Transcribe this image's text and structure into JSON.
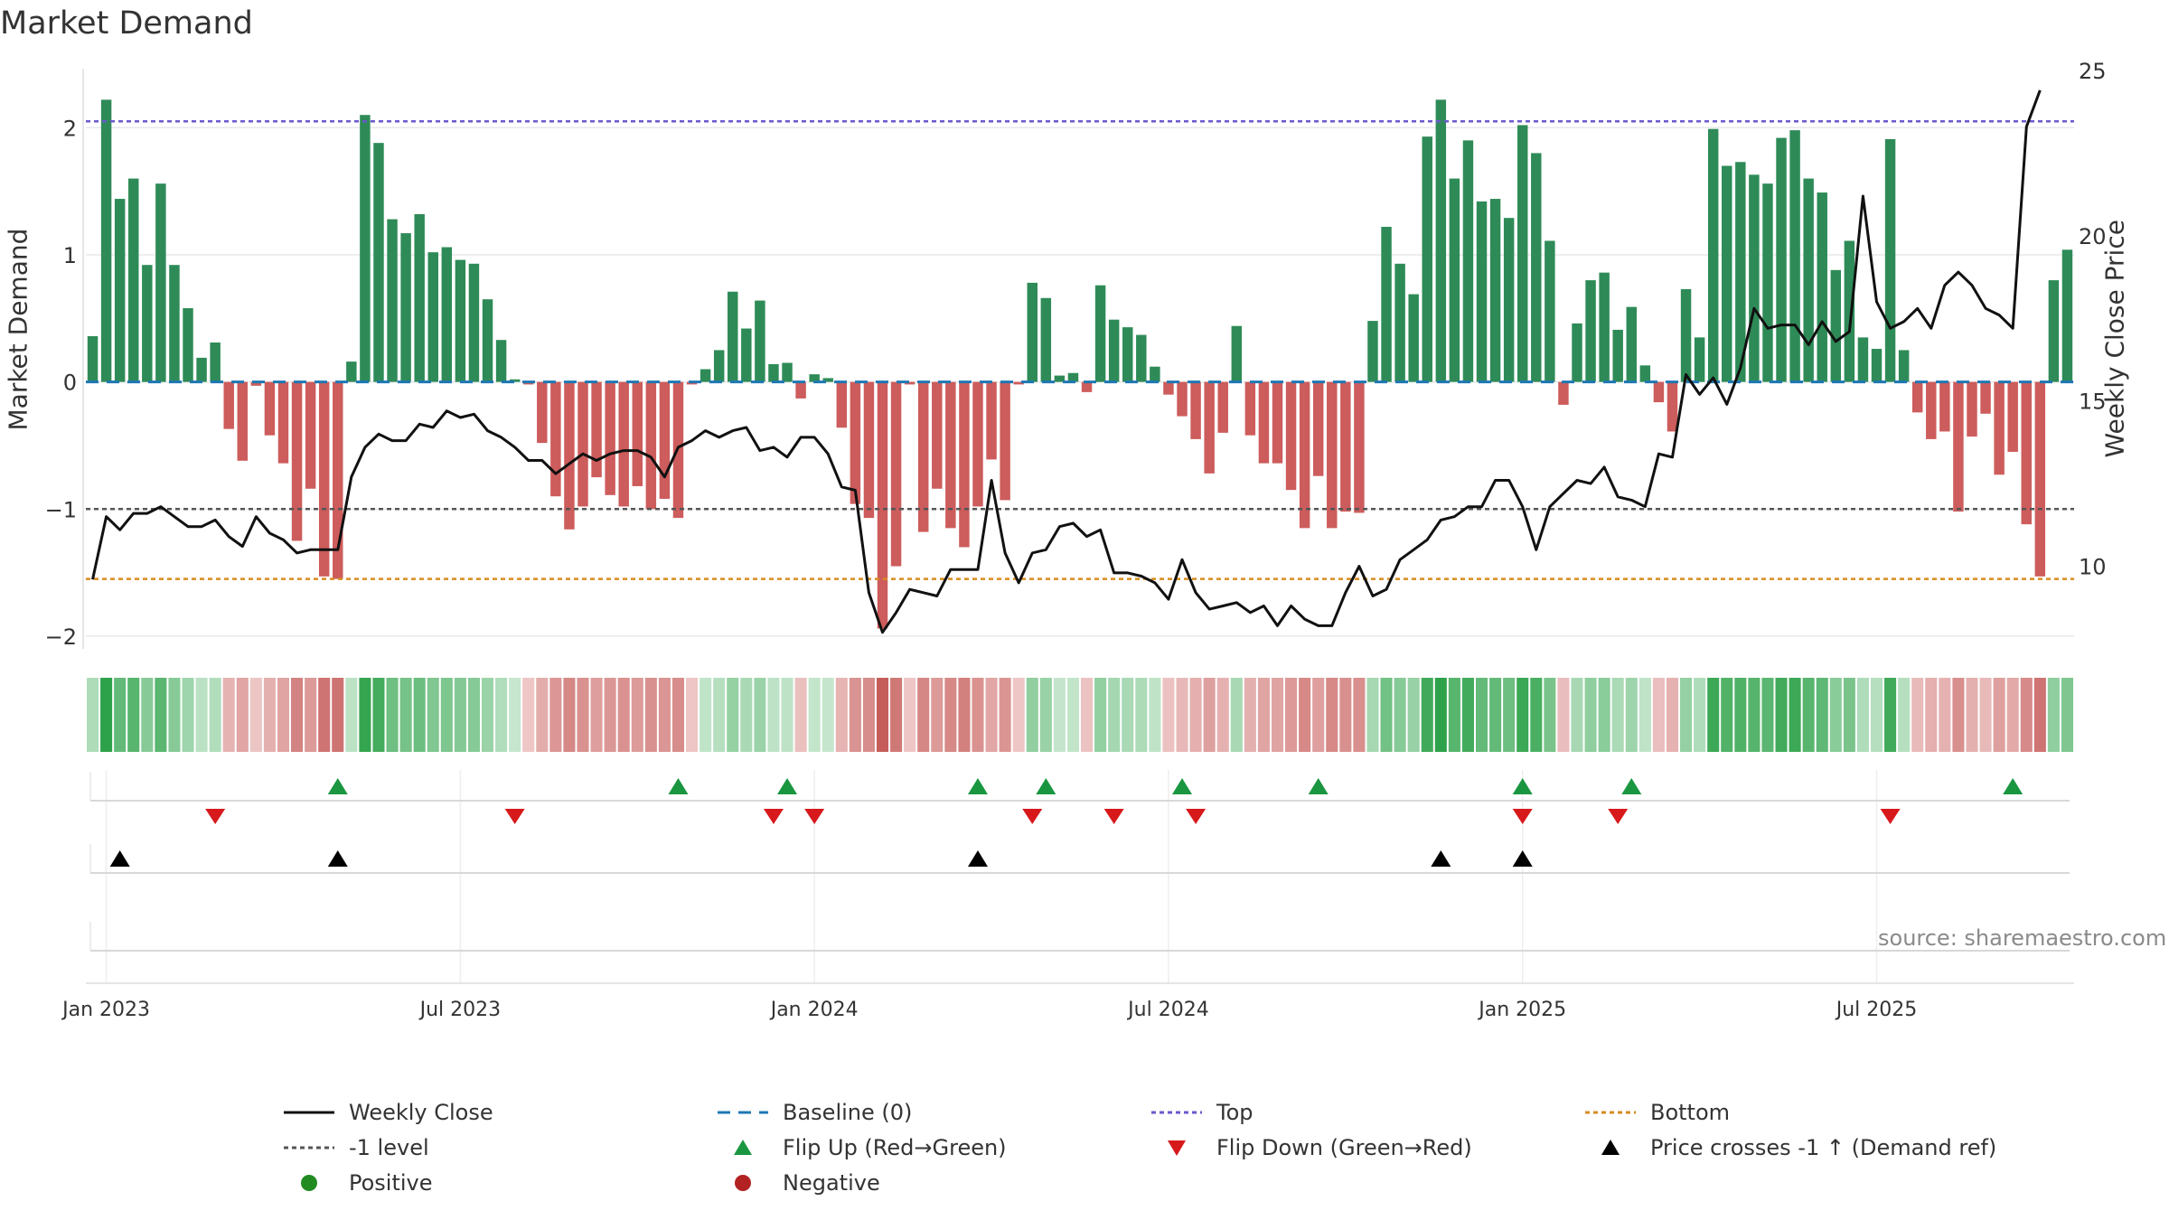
{
  "title": "Market Demand",
  "source": "source: sharemaestro.com",
  "colors": {
    "positive_bar": "#2e8b57",
    "negative_bar": "#cd5c5c",
    "price_line": "#111111",
    "baseline": "#1f77b4",
    "top_line": "#6a5acd",
    "minus1_line": "#555555",
    "bottom_line": "#d98c1f",
    "flip_up": "#1a9641",
    "flip_down": "#d7191c",
    "cross": "#000000",
    "positive_dot": "#228b22",
    "negative_dot": "#b22222",
    "grid": "#e8e8e8"
  },
  "chart_data": {
    "type": "bar",
    "title": "Market Demand",
    "ylabel": "Market Demand",
    "y2label": "Weekly Close Price",
    "ylim": [
      -2.1,
      2.45
    ],
    "y2lim": [
      7.5,
      25.0
    ],
    "yticks": [
      2,
      1,
      0,
      -1,
      -2
    ],
    "y2ticks": [
      25,
      20,
      15,
      10
    ],
    "reference_lines": {
      "top": 2.05,
      "minus1": -1.0,
      "bottom": -1.55
    },
    "x_tick_labels": [
      {
        "label": "Jan 2023",
        "week": 0
      },
      {
        "label": "Jul 2023",
        "week": 26
      },
      {
        "label": "Jan 2024",
        "week": 52
      },
      {
        "label": "Jul 2024",
        "week": 78
      },
      {
        "label": "Jan 2025",
        "week": 104
      },
      {
        "label": "Jul 2025",
        "week": 130
      }
    ],
    "week_start": -1,
    "series": [
      {
        "name": "Market Demand",
        "type": "bar",
        "values": [
          0.36,
          2.22,
          1.44,
          1.6,
          0.92,
          1.56,
          0.92,
          0.58,
          0.19,
          0.31,
          -0.37,
          -0.62,
          -0.03,
          -0.42,
          -0.64,
          -1.25,
          -0.84,
          -1.53,
          -1.55,
          0.16,
          2.1,
          1.88,
          1.28,
          1.17,
          1.32,
          1.02,
          1.06,
          0.96,
          0.93,
          0.65,
          0.33,
          0.02,
          -0.02,
          -0.48,
          -0.9,
          -1.16,
          -0.98,
          -0.75,
          -0.89,
          -0.98,
          -0.82,
          -1.0,
          -0.92,
          -1.07,
          -0.02,
          0.1,
          0.25,
          0.71,
          0.42,
          0.64,
          0.14,
          0.15,
          -0.13,
          0.06,
          0.03,
          -0.36,
          -0.96,
          -1.07,
          -1.94,
          -1.45,
          -0.02,
          -1.18,
          -0.84,
          -1.15,
          -1.3,
          -0.98,
          -0.61,
          -0.93,
          -0.02,
          0.78,
          0.66,
          0.05,
          0.07,
          -0.08,
          0.76,
          0.49,
          0.43,
          0.37,
          0.12,
          -0.1,
          -0.27,
          -0.45,
          -0.72,
          -0.4,
          0.44,
          -0.42,
          -0.64,
          -0.64,
          -0.85,
          -1.15,
          -0.74,
          -1.15,
          -1.02,
          -1.03,
          0.48,
          1.22,
          0.93,
          0.69,
          1.93,
          2.22,
          1.6,
          1.9,
          1.42,
          1.44,
          1.29,
          2.02,
          1.8,
          1.11,
          -0.18,
          0.46,
          0.8,
          0.86,
          0.41,
          0.59,
          0.13,
          -0.16,
          -0.39,
          0.73,
          0.35,
          1.99,
          1.7,
          1.73,
          1.63,
          1.56,
          1.92,
          1.98,
          1.6,
          1.49,
          0.88,
          1.11,
          0.35,
          0.26,
          1.91,
          0.25,
          -0.24,
          -0.45,
          -0.39,
          -1.02,
          -0.43,
          -0.25,
          -0.73,
          -0.55,
          -1.12,
          -1.53,
          0.8,
          1.04
        ]
      },
      {
        "name": "Weekly Close",
        "type": "line",
        "axis": "right",
        "values": [
          9.6,
          11.5,
          11.1,
          11.6,
          11.6,
          11.8,
          11.5,
          11.2,
          11.2,
          11.4,
          10.9,
          10.6,
          11.5,
          11.0,
          10.8,
          10.4,
          10.5,
          10.5,
          10.5,
          12.7,
          13.6,
          14.0,
          13.8,
          13.8,
          14.3,
          14.2,
          14.7,
          14.5,
          14.6,
          14.1,
          13.9,
          13.6,
          13.2,
          13.2,
          12.8,
          13.1,
          13.4,
          13.2,
          13.4,
          13.5,
          13.5,
          13.3,
          12.7,
          13.6,
          13.8,
          14.1,
          13.9,
          14.1,
          14.2,
          13.5,
          13.6,
          13.3,
          13.9,
          13.9,
          13.4,
          12.4,
          12.3,
          9.2,
          8.0,
          8.6,
          9.3,
          9.2,
          9.1,
          9.9,
          9.9,
          9.9,
          12.6,
          10.4,
          9.5,
          10.4,
          10.5,
          11.2,
          11.3,
          10.9,
          11.1,
          9.8,
          9.8,
          9.7,
          9.5,
          9.0,
          10.2,
          9.2,
          8.7,
          8.8,
          8.9,
          8.6,
          8.8,
          8.2,
          8.8,
          8.4,
          8.2,
          8.2,
          9.2,
          10.0,
          9.1,
          9.3,
          10.2,
          10.5,
          10.8,
          11.4,
          11.5,
          11.8,
          11.8,
          12.6,
          12.6,
          11.8,
          10.5,
          11.8,
          12.2,
          12.6,
          12.5,
          13.0,
          12.1,
          12.0,
          11.8,
          13.4,
          13.3,
          15.8,
          15.2,
          15.7,
          14.9,
          16.0,
          17.8,
          17.2,
          17.3,
          17.3,
          16.7,
          17.4,
          16.8,
          17.1,
          21.2,
          18.0,
          17.2,
          17.4,
          17.8,
          17.2,
          18.5,
          18.9,
          18.5,
          17.8,
          17.6,
          17.2,
          23.3,
          24.4
        ]
      }
    ],
    "flip_up_weeks": [
      17,
      42,
      50,
      64,
      69,
      79,
      89,
      104,
      112,
      140
    ],
    "flip_down_weeks": [
      8,
      30,
      49,
      52,
      68,
      74,
      80,
      104,
      111,
      131
    ],
    "price_cross_weeks": [
      1,
      17,
      64,
      98,
      104
    ],
    "legend": [
      {
        "label": "Weekly Close",
        "symbol": "line-solid"
      },
      {
        "label": "Baseline (0)",
        "symbol": "line-dashed"
      },
      {
        "label": "Top",
        "symbol": "line-dotted"
      },
      {
        "label": "Bottom",
        "symbol": "line-dotted"
      },
      {
        "label": "-1 level",
        "symbol": "line-dotted"
      },
      {
        "label": "Flip Up (Red→Green)",
        "symbol": "triangle-up"
      },
      {
        "label": "Flip Down (Green→Red)",
        "symbol": "triangle-down"
      },
      {
        "label": "Price crosses -1 ↑ (Demand ref)",
        "symbol": "triangle-up"
      },
      {
        "label": "Positive",
        "symbol": "circle"
      },
      {
        "label": "Negative",
        "symbol": "circle"
      }
    ]
  }
}
